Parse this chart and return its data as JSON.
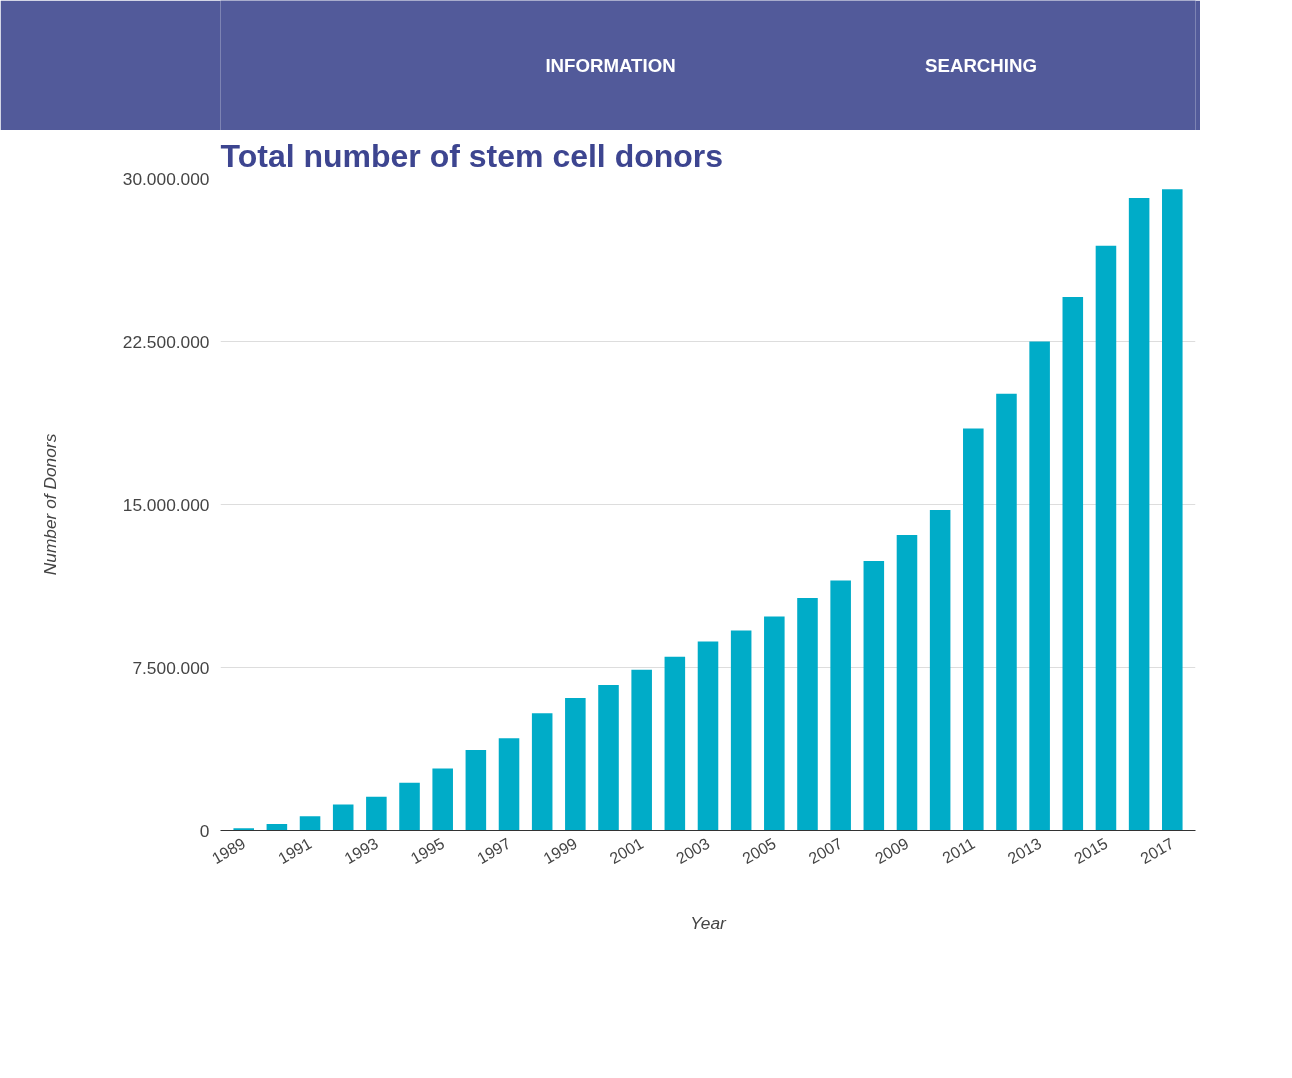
{
  "chart_data": {
    "type": "bar",
    "title": "Total number of stem cell donors",
    "xlabel": "Year",
    "ylabel": "Number of Donors",
    "annotations": [
      "INFORMATION",
      "SEARCHING"
    ],
    "categories": [
      "1989",
      null,
      "1991",
      null,
      "1993",
      null,
      "1995",
      null,
      "1997",
      null,
      "1999",
      null,
      "2001",
      null,
      "2003",
      null,
      "2005",
      null,
      "2007",
      null,
      "2009",
      null,
      "2011",
      null,
      "2013",
      null,
      "2015",
      null,
      "2017"
    ],
    "series": [
      {
        "color": "#00acc8",
        "values": [
          100000,
          300000,
          650000,
          1200000,
          1550000,
          2200000,
          2850000,
          3700000,
          4250000,
          5400000,
          6100000,
          6700000,
          7400000,
          8000000,
          8700000,
          9200000,
          9850000,
          10700000,
          11500000,
          12400000,
          13600000,
          14750000,
          18500000,
          20100000,
          22500000,
          24550000,
          26900000,
          29100000,
          29500000
        ]
      }
    ],
    "ylim": [
      0,
      30000000
    ],
    "yticks": [
      {
        "value": 0,
        "label": "0"
      },
      {
        "value": 7500000,
        "label": "7.500.000"
      },
      {
        "value": 15000000,
        "label": "15.000.000"
      },
      {
        "value": 22500000,
        "label": "22.500.000"
      },
      {
        "value": 30000000,
        "label": "30.000.000"
      }
    ],
    "grid": "y"
  }
}
